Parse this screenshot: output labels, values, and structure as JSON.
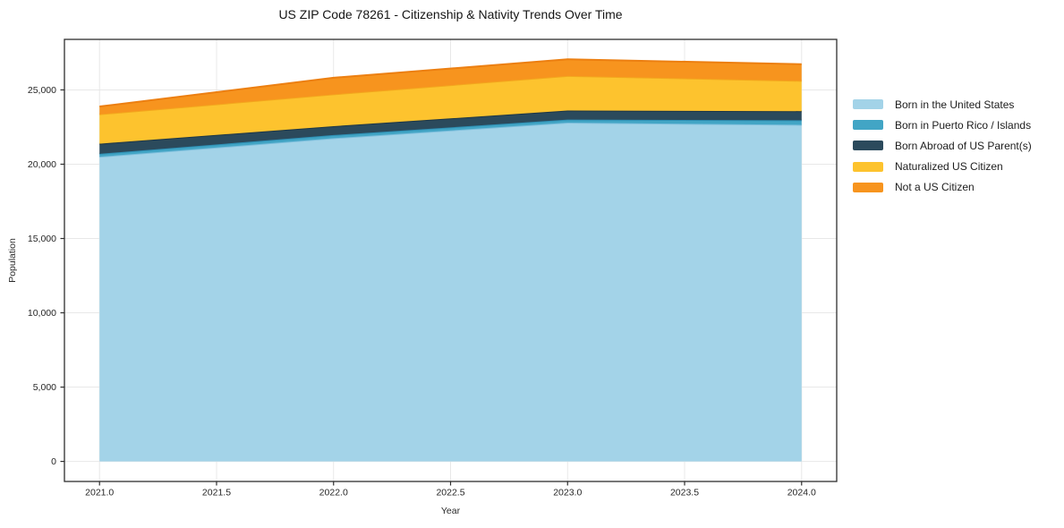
{
  "title": "US ZIP Code 78261 - Citizenship & Nativity Trends Over Time",
  "chart_data": {
    "type": "area",
    "stacked": true,
    "title": "US ZIP Code 78261 - Citizenship & Nativity Trends Over Time",
    "xlabel": "Year",
    "ylabel": "Population",
    "x": [
      2021,
      2022,
      2023,
      2024
    ],
    "series": [
      {
        "name": "Born in the United States",
        "values": [
          20500,
          21750,
          22800,
          22650
        ],
        "color": "#A3D3E8",
        "edge_color": "#7CBEDC"
      },
      {
        "name": "Born in Puerto Rico / Islands",
        "values": [
          200,
          210,
          200,
          310
        ],
        "color": "#42A5C5",
        "edge_color": "#2D8FB4"
      },
      {
        "name": "Born Abroad of US Parent(s)",
        "values": [
          680,
          600,
          610,
          610
        ],
        "color": "#2B4A5C",
        "edge_color": "#1E3745"
      },
      {
        "name": "Naturalized US Citizen",
        "values": [
          1980,
          2140,
          2330,
          2040
        ],
        "color": "#FDC32E",
        "edge_color": "#F3A71D"
      },
      {
        "name": "Not a US Citizen",
        "values": [
          520,
          1120,
          1120,
          1120
        ],
        "color": "#F7941E",
        "edge_color": "#EC7F11"
      }
    ],
    "xlim": [
      2020.85,
      2024.15
    ],
    "ylim": [
      -1350,
      28400
    ],
    "xticks": [
      2021.0,
      2021.5,
      2022.0,
      2022.5,
      2023.0,
      2023.5,
      2024.0
    ],
    "xtick_labels": [
      "2021.0",
      "2021.5",
      "2022.0",
      "2022.5",
      "2023.0",
      "2023.5",
      "2024.0"
    ],
    "yticks": [
      0,
      5000,
      10000,
      15000,
      20000,
      25000
    ],
    "ytick_labels": [
      "0",
      "5,000",
      "10,000",
      "15,000",
      "20,000",
      "25,000"
    ],
    "grid": true,
    "legend_position": "right"
  },
  "style": {
    "grid_color": "#e8e8e8",
    "spine_color": "#2e2e2e",
    "tick_label_color": "#262626",
    "background_color": "#ffffff"
  }
}
